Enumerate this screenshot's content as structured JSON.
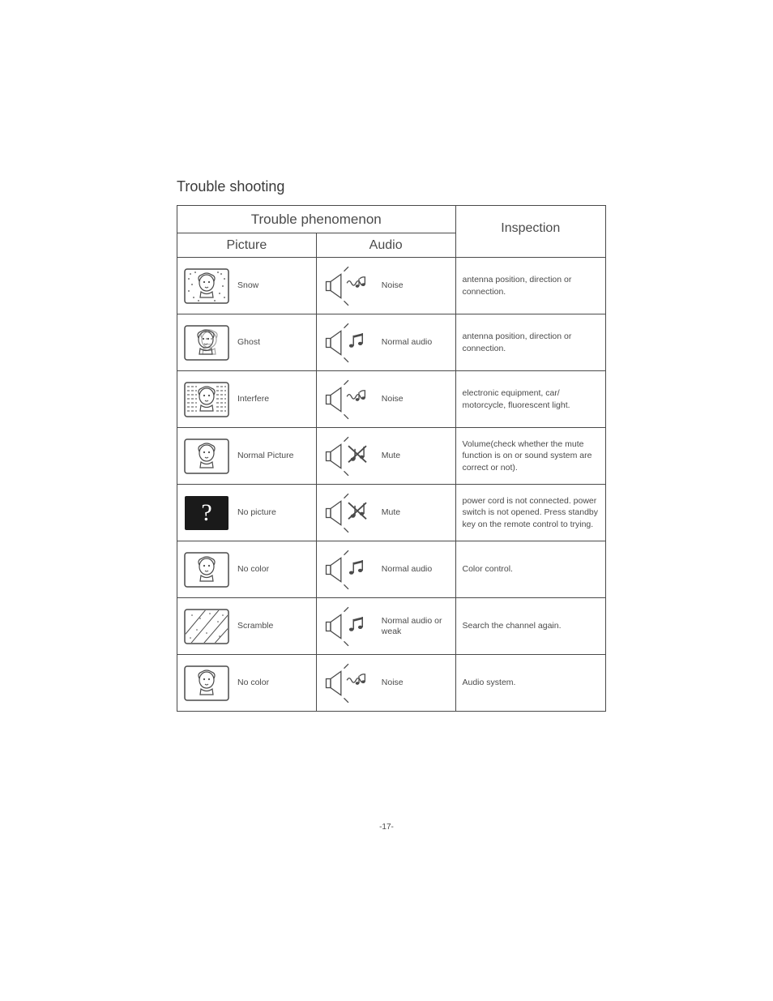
{
  "title": "Trouble shooting",
  "headers": {
    "group": "Trouble phenomenon",
    "picture": "Picture",
    "audio": "Audio",
    "inspection": "Inspection"
  },
  "rows": [
    {
      "picture_label": "Snow",
      "picture_icon": "tv-face-snow",
      "audio_label": "Noise",
      "audio_icon": "speaker-noise",
      "inspection": "antenna position, direction or connection."
    },
    {
      "picture_label": "Ghost",
      "picture_icon": "tv-face-ghost",
      "audio_label": "Normal audio",
      "audio_icon": "speaker-music",
      "inspection": "antenna position, direction or connection."
    },
    {
      "picture_label": "Interfere",
      "picture_icon": "tv-face-lines",
      "audio_label": "Noise",
      "audio_icon": "speaker-noise",
      "inspection": "electronic equipment, car/ motorcycle, fluorescent light."
    },
    {
      "picture_label": "Normal Picture",
      "picture_icon": "tv-face",
      "audio_label": "Mute",
      "audio_icon": "speaker-mute",
      "inspection": "Volume(check whether the mute function is on or sound system are correct or not)."
    },
    {
      "picture_label": "No picture",
      "picture_icon": "tv-black-q",
      "audio_label": "Mute",
      "audio_icon": "speaker-mute",
      "inspection": "power cord is not connected. power switch is not opened. Press standby key on the remote control to trying."
    },
    {
      "picture_label": "No color",
      "picture_icon": "tv-face",
      "audio_label": "Normal audio",
      "audio_icon": "speaker-music",
      "inspection": "Color control."
    },
    {
      "picture_label": "Scramble",
      "picture_icon": "tv-diag",
      "audio_label": "Normal audio or weak",
      "audio_icon": "speaker-music",
      "inspection": "Search the channel again."
    },
    {
      "picture_label": "No color",
      "picture_icon": "tv-face",
      "audio_label": "Noise",
      "audio_icon": "speaker-noise",
      "inspection": "Audio system."
    }
  ],
  "page_number": "-17-",
  "colors": {
    "stroke": "#4a4a4a",
    "background": "#ffffff",
    "black_fill": "#1a1a1a"
  }
}
